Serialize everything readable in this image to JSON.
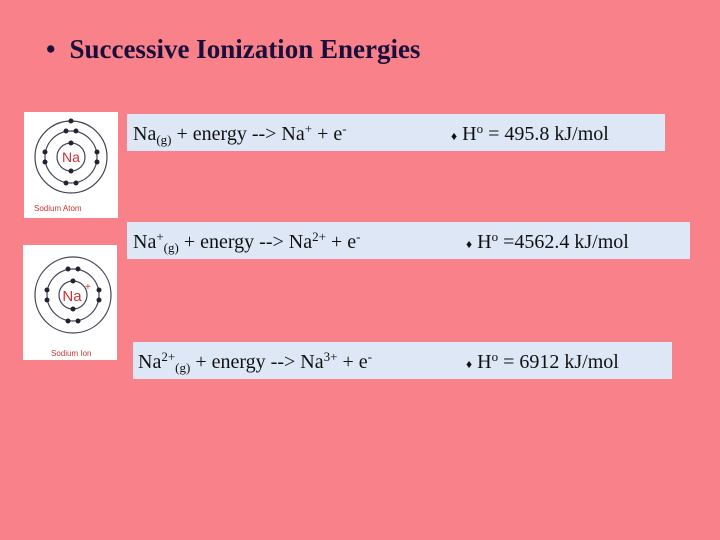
{
  "title": "Successive Ionization Energies",
  "figures": [
    {
      "symbol": "Na",
      "caption": "Sodium Atom"
    },
    {
      "symbol": "Na",
      "charge": "+",
      "caption": "Sodium Ion"
    }
  ],
  "rows": [
    {
      "equation": [
        "Na",
        "(g)",
        " + energy --> Na",
        "+",
        " + e",
        "-"
      ],
      "energy": [
        "♦",
        " H",
        "o",
        " = 495.8 kJ/mol"
      ]
    },
    {
      "equation": [
        "Na",
        "+",
        "(g)",
        " + energy --> Na",
        "2+",
        " + e",
        "-"
      ],
      "energy": [
        "♦",
        " H",
        "o",
        " =4562.4 kJ/mol"
      ]
    },
    {
      "equation": [
        "Na",
        "2+",
        "(g)",
        " + energy --> Na",
        "3+",
        " + e",
        "-"
      ],
      "energy": [
        "♦",
        " H",
        "o",
        " = 6912 kJ/mol"
      ]
    }
  ]
}
